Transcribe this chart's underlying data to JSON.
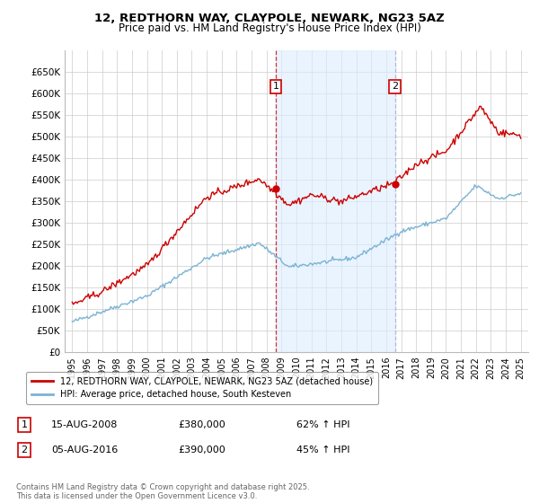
{
  "title": "12, REDTHORN WAY, CLAYPOLE, NEWARK, NG23 5AZ",
  "subtitle": "Price paid vs. HM Land Registry's House Price Index (HPI)",
  "legend_line1": "12, REDTHORN WAY, CLAYPOLE, NEWARK, NG23 5AZ (detached house)",
  "legend_line2": "HPI: Average price, detached house, South Kesteven",
  "annotation1_label": "1",
  "annotation1_date": "15-AUG-2008",
  "annotation1_price": "£380,000",
  "annotation1_hpi": "62% ↑ HPI",
  "annotation2_label": "2",
  "annotation2_date": "05-AUG-2016",
  "annotation2_price": "£390,000",
  "annotation2_hpi": "45% ↑ HPI",
  "footnote": "Contains HM Land Registry data © Crown copyright and database right 2025.\nThis data is licensed under the Open Government Licence v3.0.",
  "red_color": "#cc0000",
  "blue_color": "#7ab3d4",
  "marker1_x": 2008.62,
  "marker1_y": 380000,
  "marker2_x": 2016.59,
  "marker2_y": 390000,
  "vline1_x": 2008.62,
  "vline2_x": 2016.59,
  "ylim": [
    0,
    700000
  ],
  "xlim": [
    1994.5,
    2025.5
  ],
  "yticks": [
    0,
    50000,
    100000,
    150000,
    200000,
    250000,
    300000,
    350000,
    400000,
    450000,
    500000,
    550000,
    600000,
    650000
  ],
  "ytick_labels": [
    "£0",
    "£50K",
    "£100K",
    "£150K",
    "£200K",
    "£250K",
    "£300K",
    "£350K",
    "£400K",
    "£450K",
    "£500K",
    "£550K",
    "£600K",
    "£650K"
  ],
  "xticks": [
    1995,
    1996,
    1997,
    1998,
    1999,
    2000,
    2001,
    2002,
    2003,
    2004,
    2005,
    2006,
    2007,
    2008,
    2009,
    2010,
    2011,
    2012,
    2013,
    2014,
    2015,
    2016,
    2017,
    2018,
    2019,
    2020,
    2021,
    2022,
    2023,
    2024,
    2025
  ],
  "background_color": "#ffffff",
  "plot_bg_color": "#ffffff",
  "grid_color": "#cccccc",
  "shaded_region_color": "#ddeeff"
}
